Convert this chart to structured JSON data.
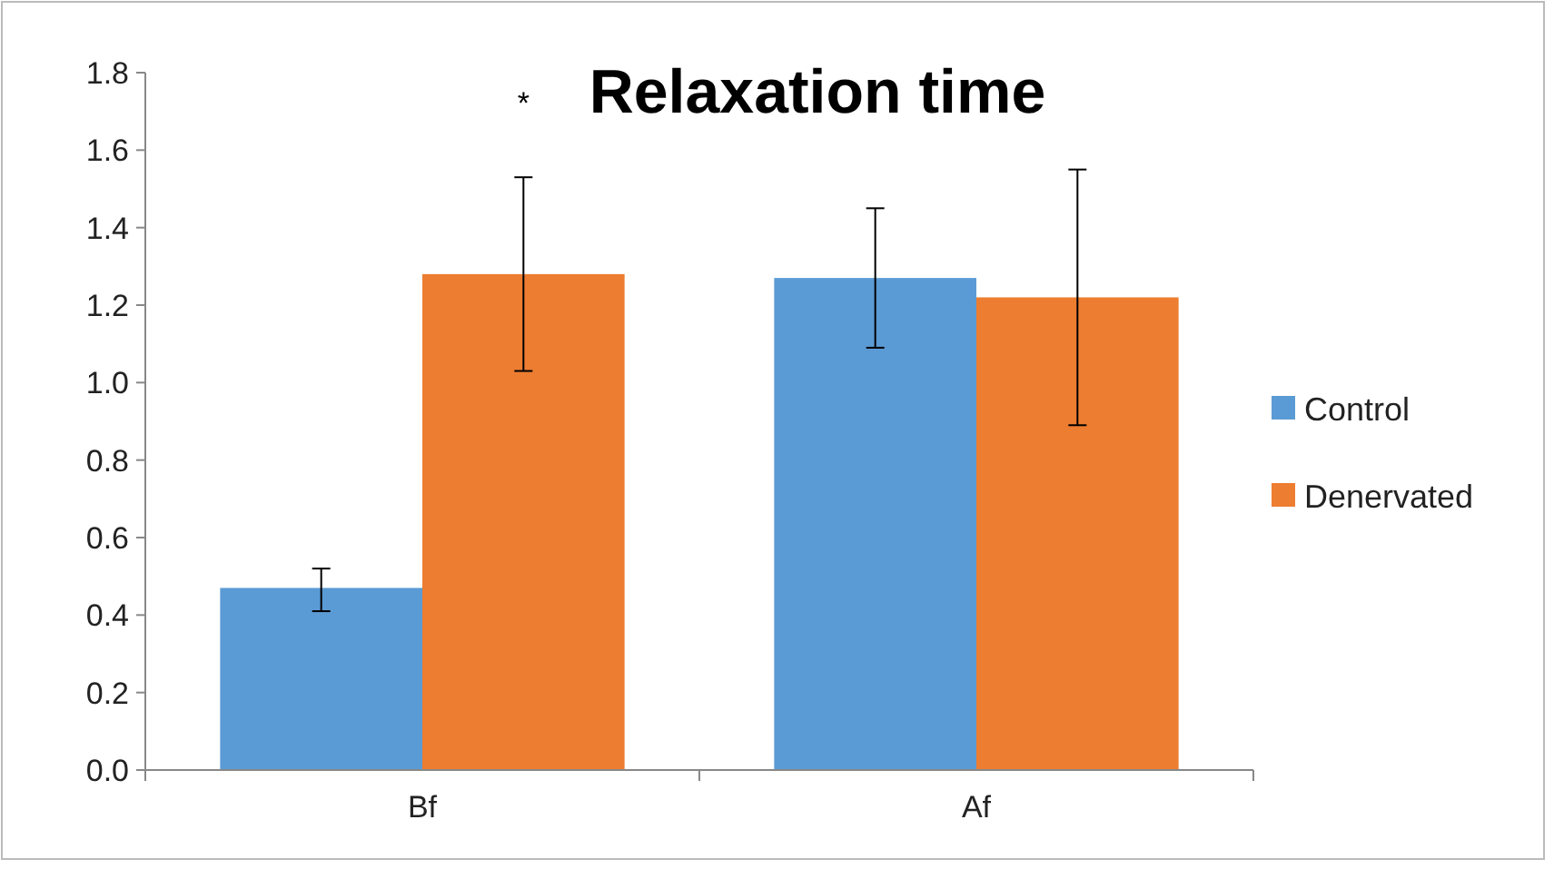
{
  "chart_data": {
    "type": "bar",
    "title": "Relaxation time",
    "categories": [
      "Bf",
      "Af"
    ],
    "series": [
      {
        "name": "Control",
        "color": "#5b9bd5",
        "values": [
          0.47,
          1.27
        ],
        "errors": [
          [
            0.41,
            0.52
          ],
          [
            1.09,
            1.45
          ]
        ]
      },
      {
        "name": "Denervated",
        "color": "#ed7d31",
        "values": [
          1.28,
          1.22
        ],
        "errors": [
          [
            1.03,
            1.53
          ],
          [
            0.89,
            1.55
          ]
        ]
      }
    ],
    "annotations": [
      "*"
    ],
    "ylim": [
      0,
      1.8
    ],
    "yticks": [
      {
        "value": 0,
        "label": "0.0"
      },
      0.2,
      0.4,
      0.6,
      0.8,
      {
        "value": 1,
        "label": "1.0"
      },
      1.2,
      1.4,
      1.6,
      1.8
    ],
    "legend": "right",
    "grid": false
  }
}
